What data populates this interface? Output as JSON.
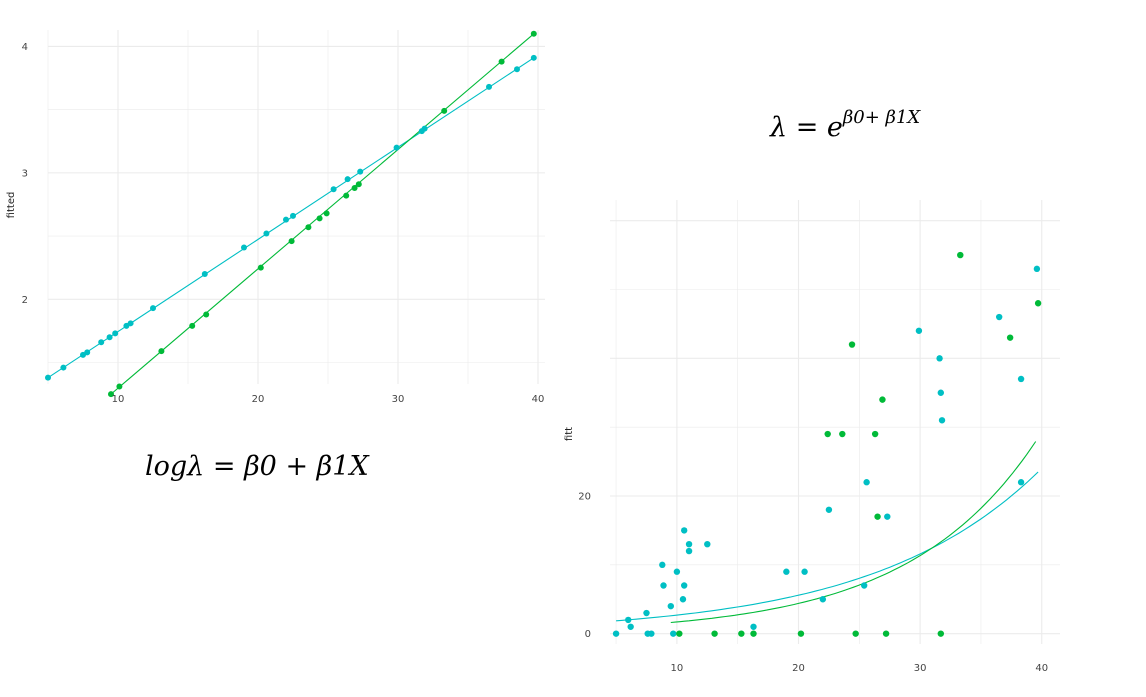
{
  "equations": {
    "log_link": "logλ =  β0 +  β1X",
    "exp_lhs": "λ = e",
    "exp_sup": "β0+ β1X"
  },
  "colors": {
    "cyan": "#00bfc4",
    "green": "#00ba38",
    "grid": "#ebebeb"
  },
  "chart_data": [
    {
      "type": "scatter",
      "title": "",
      "xlabel": "",
      "ylabel": "fitted",
      "xlim": [
        5,
        40.5
      ],
      "ylim": [
        1.33,
        4.13
      ],
      "grid": true,
      "xticks": [
        10,
        20,
        30,
        40
      ],
      "yticks": [
        2,
        3,
        4
      ],
      "series": [
        {
          "color": "cyan",
          "line": [
            [
              5,
              1.38
            ],
            [
              39.7,
              3.91
            ]
          ],
          "points": [
            [
              5,
              1.38
            ],
            [
              6.1,
              1.46
            ],
            [
              7.5,
              1.56
            ],
            [
              7.8,
              1.58
            ],
            [
              8.8,
              1.66
            ],
            [
              9.4,
              1.7
            ],
            [
              9.8,
              1.73
            ],
            [
              10.6,
              1.79
            ],
            [
              10.9,
              1.81
            ],
            [
              12.5,
              1.93
            ],
            [
              16.2,
              2.2
            ],
            [
              19,
              2.41
            ],
            [
              20.6,
              2.52
            ],
            [
              22,
              2.63
            ],
            [
              22.5,
              2.66
            ],
            [
              25.4,
              2.87
            ],
            [
              26.4,
              2.95
            ],
            [
              27.3,
              3.01
            ],
            [
              29.9,
              3.2
            ],
            [
              31.7,
              3.33
            ],
            [
              31.9,
              3.35
            ],
            [
              36.5,
              3.68
            ],
            [
              38.5,
              3.82
            ],
            [
              39.7,
              3.91
            ]
          ]
        },
        {
          "color": "green",
          "line": [
            [
              9.5,
              1.25
            ],
            [
              39.7,
              4.1
            ]
          ],
          "points": [
            [
              9.5,
              1.25
            ],
            [
              10.1,
              1.31
            ],
            [
              13.1,
              1.59
            ],
            [
              15.3,
              1.79
            ],
            [
              16.3,
              1.88
            ],
            [
              20.2,
              2.25
            ],
            [
              22.4,
              2.46
            ],
            [
              23.6,
              2.57
            ],
            [
              24.4,
              2.64
            ],
            [
              24.9,
              2.68
            ],
            [
              26.3,
              2.82
            ],
            [
              26.9,
              2.88
            ],
            [
              27.2,
              2.91
            ],
            [
              33.3,
              3.49
            ],
            [
              37.4,
              3.88
            ],
            [
              39.7,
              4.1
            ]
          ]
        }
      ]
    },
    {
      "type": "scatter",
      "title": "",
      "xlabel": "",
      "ylabel": "fitt",
      "xlim": [
        4.5,
        41.5
      ],
      "ylim": [
        -1.5,
        63
      ],
      "grid": true,
      "xticks": [
        10,
        20,
        30,
        40
      ],
      "yticks": [
        0,
        20
      ],
      "series": [
        {
          "color": "cyan",
          "curve": {
            "a": 1.3,
            "b": 0.0729,
            "from": 5,
            "to": 39.7
          },
          "points": [
            [
              5,
              0
            ],
            [
              6,
              2
            ],
            [
              6.2,
              1
            ],
            [
              7.5,
              3
            ],
            [
              7.6,
              0
            ],
            [
              7.9,
              0
            ],
            [
              8.8,
              10
            ],
            [
              8.9,
              7
            ],
            [
              9.5,
              4
            ],
            [
              9.7,
              0
            ],
            [
              10,
              9
            ],
            [
              10.5,
              5
            ],
            [
              10.6,
              7
            ],
            [
              10.6,
              15
            ],
            [
              11,
              13
            ],
            [
              11,
              12
            ],
            [
              12.5,
              13
            ],
            [
              16.3,
              1
            ],
            [
              19,
              9
            ],
            [
              20.5,
              9
            ],
            [
              22,
              5
            ],
            [
              22.5,
              18
            ],
            [
              25.4,
              7
            ],
            [
              25.6,
              22
            ],
            [
              27.3,
              17
            ],
            [
              29.9,
              44
            ],
            [
              31.6,
              40
            ],
            [
              31.7,
              35
            ],
            [
              31.8,
              31
            ],
            [
              36.5,
              46
            ],
            [
              38.3,
              37
            ],
            [
              38.3,
              22
            ],
            [
              39.6,
              53
            ]
          ]
        },
        {
          "color": "green",
          "curve": {
            "a": 0.66,
            "b": 0.0948,
            "from": 9.5,
            "to": 39.5
          },
          "points": [
            [
              10.2,
              0
            ],
            [
              13.1,
              0
            ],
            [
              15.3,
              0
            ],
            [
              16.3,
              0
            ],
            [
              20.2,
              0
            ],
            [
              22.4,
              29
            ],
            [
              23.6,
              29
            ],
            [
              24.4,
              42
            ],
            [
              24.7,
              0
            ],
            [
              26.3,
              29
            ],
            [
              26.5,
              17
            ],
            [
              26.9,
              34
            ],
            [
              27.2,
              0
            ],
            [
              31.7,
              0
            ],
            [
              33.3,
              55
            ],
            [
              37.4,
              43
            ],
            [
              39.7,
              48
            ]
          ]
        }
      ]
    }
  ]
}
